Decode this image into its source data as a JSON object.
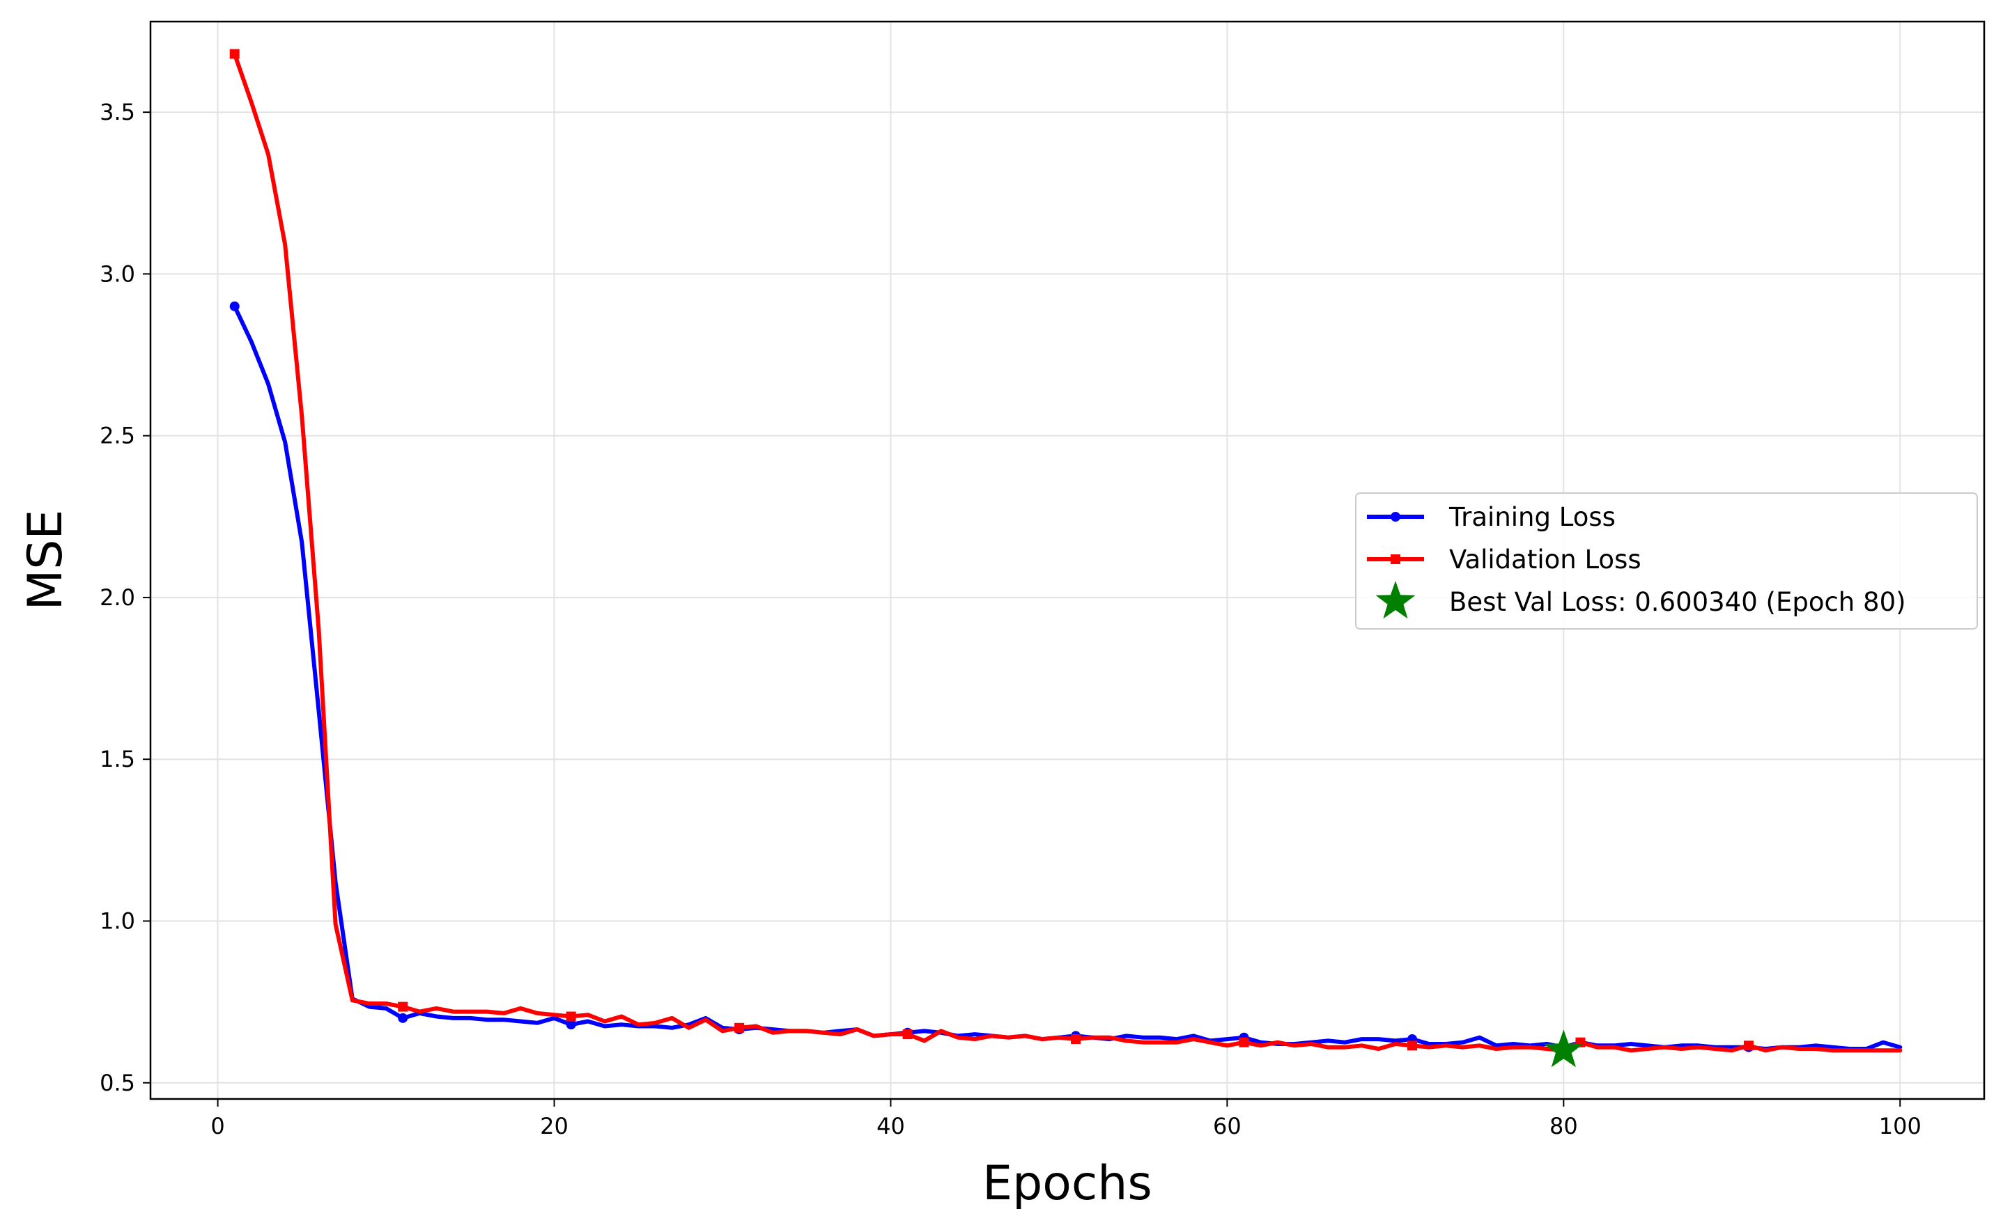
{
  "chart_data": {
    "type": "line",
    "title": "",
    "xlabel": "Epochs",
    "ylabel": "MSE",
    "xlim": [
      -4,
      105
    ],
    "ylim": [
      0.45,
      3.78
    ],
    "xticks": [
      0,
      20,
      40,
      60,
      80,
      100
    ],
    "yticks": [
      0.5,
      1.0,
      1.5,
      2.0,
      2.5,
      3.0,
      3.5
    ],
    "grid": true,
    "legend_position": "center-right",
    "x": [
      1,
      2,
      3,
      4,
      5,
      6,
      7,
      8,
      9,
      10,
      11,
      12,
      13,
      14,
      15,
      16,
      17,
      18,
      19,
      20,
      21,
      22,
      23,
      24,
      25,
      26,
      27,
      28,
      29,
      30,
      31,
      32,
      33,
      34,
      35,
      36,
      37,
      38,
      39,
      40,
      41,
      42,
      43,
      44,
      45,
      46,
      47,
      48,
      49,
      50,
      51,
      52,
      53,
      54,
      55,
      56,
      57,
      58,
      59,
      60,
      61,
      62,
      63,
      64,
      65,
      66,
      67,
      68,
      69,
      70,
      71,
      72,
      73,
      74,
      75,
      76,
      77,
      78,
      79,
      80,
      81,
      82,
      83,
      84,
      85,
      86,
      87,
      88,
      89,
      90,
      91,
      92,
      93,
      94,
      95,
      96,
      97,
      98,
      99,
      100
    ],
    "series": [
      {
        "name": "Training Loss",
        "color": "#0000ff",
        "marker": "circle",
        "markevery": 10,
        "values": [
          2.9,
          2.79,
          2.66,
          2.48,
          2.17,
          1.65,
          1.12,
          0.76,
          0.735,
          0.73,
          0.7,
          0.715,
          0.705,
          0.7,
          0.7,
          0.695,
          0.695,
          0.69,
          0.685,
          0.7,
          0.68,
          0.69,
          0.675,
          0.68,
          0.675,
          0.675,
          0.67,
          0.68,
          0.7,
          0.67,
          0.665,
          0.67,
          0.665,
          0.66,
          0.66,
          0.655,
          0.66,
          0.665,
          0.645,
          0.65,
          0.655,
          0.66,
          0.655,
          0.645,
          0.65,
          0.645,
          0.64,
          0.645,
          0.635,
          0.64,
          0.645,
          0.64,
          0.635,
          0.645,
          0.64,
          0.64,
          0.635,
          0.645,
          0.63,
          0.635,
          0.64,
          0.625,
          0.62,
          0.62,
          0.625,
          0.63,
          0.625,
          0.635,
          0.635,
          0.63,
          0.635,
          0.62,
          0.62,
          0.625,
          0.64,
          0.615,
          0.62,
          0.615,
          0.62,
          0.61,
          0.625,
          0.615,
          0.615,
          0.62,
          0.615,
          0.61,
          0.615,
          0.615,
          0.61,
          0.61,
          0.61,
          0.605,
          0.61,
          0.61,
          0.615,
          0.61,
          0.605,
          0.605,
          0.625,
          0.61
        ]
      },
      {
        "name": "Validation Loss",
        "color": "#ff0000",
        "marker": "square",
        "markevery": 10,
        "values": [
          3.68,
          3.53,
          3.37,
          3.09,
          2.56,
          1.9,
          0.99,
          0.755,
          0.745,
          0.745,
          0.735,
          0.72,
          0.73,
          0.72,
          0.72,
          0.72,
          0.715,
          0.73,
          0.715,
          0.71,
          0.705,
          0.71,
          0.69,
          0.705,
          0.68,
          0.685,
          0.7,
          0.67,
          0.695,
          0.66,
          0.67,
          0.675,
          0.655,
          0.66,
          0.66,
          0.655,
          0.65,
          0.665,
          0.645,
          0.65,
          0.65,
          0.63,
          0.66,
          0.64,
          0.635,
          0.645,
          0.64,
          0.645,
          0.635,
          0.64,
          0.635,
          0.64,
          0.64,
          0.63,
          0.625,
          0.625,
          0.625,
          0.635,
          0.625,
          0.615,
          0.625,
          0.615,
          0.625,
          0.615,
          0.62,
          0.61,
          0.61,
          0.615,
          0.605,
          0.62,
          0.615,
          0.61,
          0.615,
          0.61,
          0.615,
          0.605,
          0.61,
          0.61,
          0.605,
          0.6003,
          0.625,
          0.61,
          0.61,
          0.6,
          0.605,
          0.61,
          0.605,
          0.61,
          0.605,
          0.6,
          0.615,
          0.6,
          0.61,
          0.605,
          0.605,
          0.6,
          0.6,
          0.6,
          0.6,
          0.6
        ]
      }
    ],
    "best_point": {
      "label": "Best Val Loss: 0.600340 (Epoch 80)",
      "x": 80,
      "y": 0.60034,
      "color": "#008000",
      "marker": "star"
    }
  }
}
